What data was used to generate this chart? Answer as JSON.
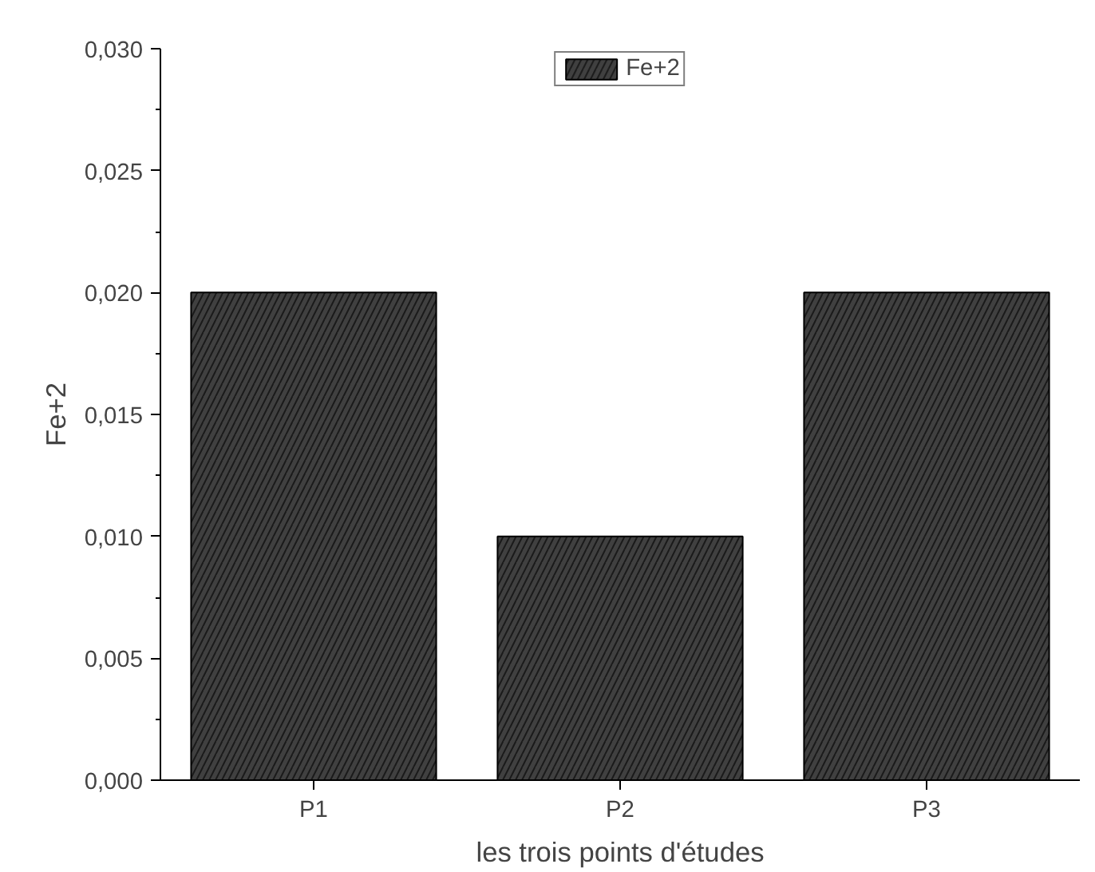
{
  "chart_data": {
    "type": "bar",
    "xlabel": "les trois points d'études",
    "ylabel": "Fe+2",
    "categories": [
      "P1",
      "P2",
      "P3"
    ],
    "series": [
      {
        "name": "Fe+2",
        "color": "#404040",
        "values": [
          0.02,
          0.01,
          0.02
        ]
      }
    ],
    "ylim": [
      0,
      0.03
    ],
    "yticks": [
      {
        "value": 0,
        "label": "0,000"
      },
      {
        "value": 0.005,
        "label": "0,005"
      },
      {
        "value": 0.01,
        "label": "0,010"
      },
      {
        "value": 0.015,
        "label": "0,015"
      },
      {
        "value": 0.02,
        "label": "0,020"
      },
      {
        "value": 0.025,
        "label": "0,025"
      },
      {
        "value": 0.03,
        "label": "0,030"
      }
    ],
    "grid": false,
    "legend": "top"
  }
}
